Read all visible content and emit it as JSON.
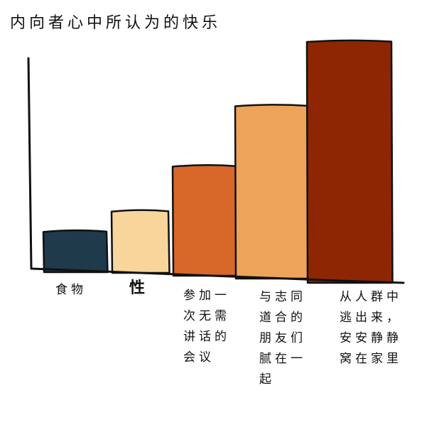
{
  "chart_data": {
    "type": "bar",
    "title": "内向者心中所认为的快乐",
    "xlabel": "",
    "ylabel": "",
    "grid": false,
    "categories": [
      "食物",
      "性",
      "参加一次无需讲话的会议",
      "与志同道合的朋友们腻在一起",
      "从人群中逃出来，安安静静窝在家里"
    ],
    "label_lines": [
      [
        "食物"
      ],
      [
        "性"
      ],
      [
        "参加一",
        "次无需",
        "讲话的",
        "会议"
      ],
      [
        "与志同",
        "道合的",
        "朋友们",
        "腻在一",
        "起"
      ],
      [
        "从人群中",
        "逃出来，",
        "安安静静",
        "窝在家里"
      ]
    ],
    "values": [
      1.8,
      2.7,
      4.7,
      7.3,
      10
    ],
    "ylim": [
      0,
      11
    ],
    "colors": [
      "#1f3a4a",
      "#f8d59a",
      "#d8672a",
      "#eea35a",
      "#8e2603"
    ]
  }
}
